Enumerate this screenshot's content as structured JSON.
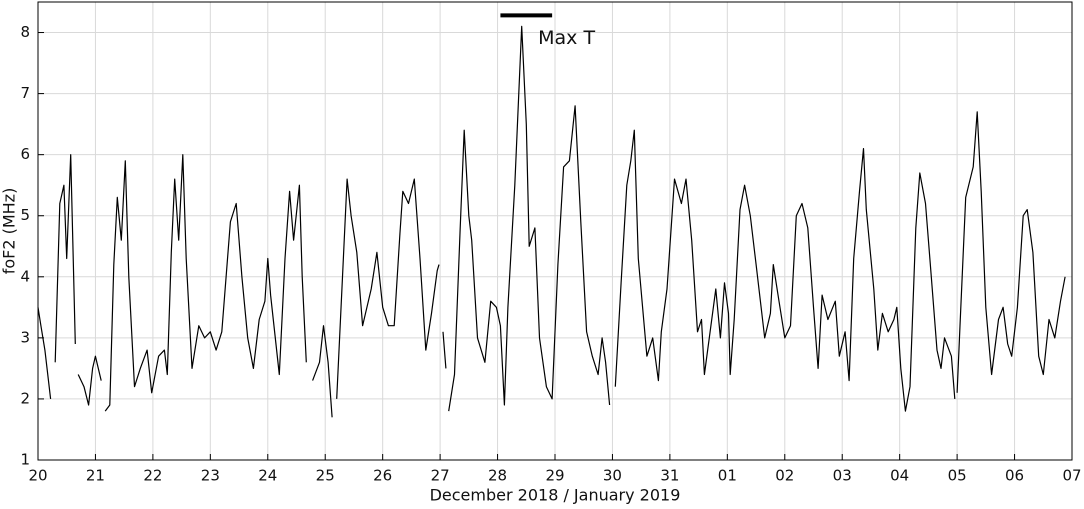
{
  "chart_data": {
    "type": "line",
    "xlabel": "December 2018 / January 2019",
    "ylabel": "foF2 (MHz)",
    "xlim": [
      0,
      18
    ],
    "ylim": [
      1,
      8.5
    ],
    "xticks": [
      {
        "value": 0,
        "label": "20"
      },
      {
        "value": 1,
        "label": "21"
      },
      {
        "value": 2,
        "label": "22"
      },
      {
        "value": 3,
        "label": "23"
      },
      {
        "value": 4,
        "label": "24"
      },
      {
        "value": 5,
        "label": "25"
      },
      {
        "value": 6,
        "label": "26"
      },
      {
        "value": 7,
        "label": "27"
      },
      {
        "value": 8,
        "label": "28"
      },
      {
        "value": 9,
        "label": "29"
      },
      {
        "value": 10,
        "label": "30"
      },
      {
        "value": 11,
        "label": "31"
      },
      {
        "value": 12,
        "label": "01"
      },
      {
        "value": 13,
        "label": "02"
      },
      {
        "value": 14,
        "label": "03"
      },
      {
        "value": 15,
        "label": "04"
      },
      {
        "value": 16,
        "label": "05"
      },
      {
        "value": 17,
        "label": "06"
      },
      {
        "value": 18,
        "label": "07"
      }
    ],
    "yticks": [
      1,
      2,
      3,
      4,
      5,
      6,
      7,
      8
    ],
    "grid": true,
    "annotations": [
      {
        "text": "Max T",
        "x_start": 8.05,
        "x_end": 8.95,
        "y": 8.28
      }
    ],
    "x": [
      0,
      0.05,
      0.12,
      0.22,
      0.26,
      0.3,
      0.38,
      0.45,
      0.5,
      0.57,
      0.65,
      0.68,
      0.7,
      0.8,
      0.88,
      0.95,
      1.0,
      1.1,
      1.14,
      1.17,
      1.25,
      1.32,
      1.38,
      1.45,
      1.52,
      1.58,
      1.68,
      1.78,
      1.9,
      1.98,
      2.1,
      2.2,
      2.25,
      2.32,
      2.38,
      2.45,
      2.52,
      2.58,
      2.68,
      2.8,
      2.9,
      3.0,
      3.1,
      3.2,
      3.35,
      3.45,
      3.55,
      3.65,
      3.75,
      3.85,
      3.95,
      4.0,
      4.05,
      4.2,
      4.3,
      4.38,
      4.45,
      4.55,
      4.6,
      4.67,
      4.72,
      4.78,
      4.9,
      4.97,
      5.05,
      5.12,
      5.16,
      5.2,
      5.3,
      5.38,
      5.45,
      5.55,
      5.65,
      5.8,
      5.9,
      6.0,
      6.1,
      6.2,
      6.3,
      6.35,
      6.45,
      6.55,
      6.65,
      6.75,
      6.85,
      6.95,
      6.98,
      7.02,
      7.05,
      7.1,
      7.12,
      7.15,
      7.25,
      7.35,
      7.42,
      7.5,
      7.55,
      7.65,
      7.78,
      7.88,
      7.98,
      8.05,
      8.12,
      8.18,
      8.3,
      8.42,
      8.5,
      8.55,
      8.65,
      8.73,
      8.85,
      8.95,
      9.05,
      9.15,
      9.25,
      9.35,
      9.45,
      9.55,
      9.65,
      9.75,
      9.82,
      9.88,
      9.95,
      10.0,
      10.05,
      10.15,
      10.25,
      10.32,
      10.38,
      10.45,
      10.6,
      10.7,
      10.8,
      10.85,
      10.95,
      11.08,
      11.2,
      11.28,
      11.38,
      11.48,
      11.55,
      11.6,
      11.7,
      11.8,
      11.88,
      11.95,
      12.02,
      12.05,
      12.12,
      12.22,
      12.3,
      12.4,
      12.5,
      12.65,
      12.75,
      12.8,
      12.9,
      13.0,
      13.1,
      13.2,
      13.3,
      13.4,
      13.5,
      13.58,
      13.65,
      13.75,
      13.88,
      13.95,
      14.05,
      14.12,
      14.2,
      14.3,
      14.37,
      14.42,
      14.55,
      14.62,
      14.7,
      14.8,
      14.9,
      14.95,
      15.02,
      15.1,
      15.18,
      15.28,
      15.35,
      15.45,
      15.55,
      15.65,
      15.72,
      15.78,
      15.9,
      15.96,
      15.98,
      16.0,
      16.05,
      16.15,
      16.28,
      16.35,
      16.42,
      16.5,
      16.6,
      16.72,
      16.8,
      16.88,
      16.95,
      17.05,
      17.15,
      17.22,
      17.32,
      17.42,
      17.5,
      17.6,
      17.7,
      17.8,
      17.88
    ],
    "series": [
      {
        "name": null,
        "color": "#000000",
        "values": [
          3.5,
          3.2,
          2.8,
          2.0,
          null,
          2.6,
          5.2,
          5.5,
          4.3,
          6.0,
          2.9,
          null,
          2.4,
          2.2,
          1.9,
          2.5,
          2.7,
          2.3,
          null,
          1.8,
          1.9,
          4.2,
          5.3,
          4.6,
          5.9,
          4.0,
          2.2,
          2.5,
          2.8,
          2.1,
          2.7,
          2.8,
          2.4,
          4.4,
          5.6,
          4.6,
          6.0,
          4.3,
          2.5,
          3.2,
          3.0,
          3.1,
          2.8,
          3.1,
          4.9,
          5.2,
          4.0,
          3.0,
          2.5,
          3.3,
          3.6,
          4.3,
          3.7,
          2.4,
          4.3,
          5.4,
          4.6,
          5.5,
          4.0,
          2.6,
          null,
          2.3,
          2.6,
          3.2,
          2.6,
          1.7,
          null,
          2.0,
          4.0,
          5.6,
          5.0,
          4.4,
          3.2,
          3.8,
          4.4,
          3.5,
          3.2,
          3.2,
          4.7,
          5.4,
          5.2,
          5.6,
          4.3,
          2.8,
          3.4,
          4.1,
          4.2,
          null,
          3.1,
          2.5,
          null,
          1.8,
          2.4,
          4.8,
          6.4,
          5.0,
          4.6,
          3.0,
          2.6,
          3.6,
          3.5,
          3.2,
          1.9,
          3.5,
          5.5,
          8.1,
          6.5,
          4.5,
          4.8,
          3.0,
          2.2,
          2.0,
          4.2,
          5.8,
          5.9,
          6.8,
          4.9,
          3.1,
          2.7,
          2.4,
          3.0,
          2.6,
          1.9,
          null,
          2.2,
          3.9,
          5.5,
          5.9,
          6.4,
          4.3,
          2.7,
          3.0,
          2.3,
          3.1,
          3.8,
          5.6,
          5.2,
          5.6,
          4.6,
          3.1,
          3.3,
          2.4,
          3.1,
          3.8,
          3.0,
          3.9,
          3.4,
          2.4,
          3.3,
          5.1,
          5.5,
          5.0,
          4.2,
          3.0,
          3.4,
          4.2,
          3.6,
          3.0,
          3.2,
          5.0,
          5.2,
          4.8,
          3.5,
          2.5,
          3.7,
          3.3,
          3.6,
          2.7,
          3.1,
          2.3,
          4.3,
          5.4,
          6.1,
          5.1,
          3.8,
          2.8,
          3.4,
          3.1,
          3.3,
          3.5,
          2.5,
          1.8,
          2.2,
          4.8,
          5.7,
          5.2,
          4.0,
          2.8,
          2.5,
          3.0,
          2.7,
          2.0,
          null,
          2.1,
          3.2,
          5.3,
          5.8,
          6.7,
          5.4,
          3.5,
          2.4,
          3.3,
          3.5,
          2.9,
          2.7,
          3.5,
          5.0,
          5.1,
          4.4,
          2.7,
          2.4,
          3.3,
          3.0,
          3.6,
          4.0
        ]
      }
    ]
  }
}
